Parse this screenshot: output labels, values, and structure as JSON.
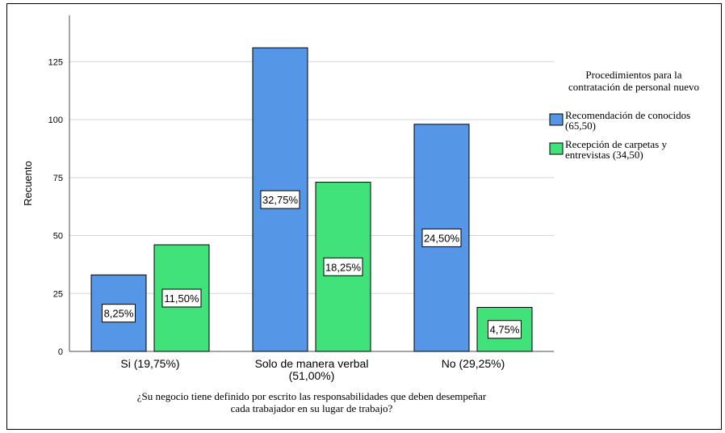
{
  "chart_data": {
    "type": "bar",
    "ylabel": "Recuento",
    "xlabel": "¿Su negocio tiene definido por escrito las responsabilidades que deben desempeñar cada trabajador en su lugar de trabajo?",
    "xlabel_lines": [
      "¿Su negocio tiene definido por escrito las responsabilidades que deben desempeñar",
      "cada trabajador en su lugar de trabajo?"
    ],
    "ylim": [
      0,
      145
    ],
    "yticks": [
      0,
      25,
      50,
      75,
      100,
      125
    ],
    "grid": true,
    "categories": [
      {
        "lines": [
          "Si (19,75%)"
        ]
      },
      {
        "lines": [
          "Solo de manera verbal",
          "(51,00%)"
        ]
      },
      {
        "lines": [
          "No (29,25%)"
        ]
      }
    ],
    "series": [
      {
        "name": "Recomendación de conocidos (65,50)",
        "legend_lines": [
          "Recomendación de conocidos",
          "(65,50)"
        ],
        "color": "#5596e6",
        "values": [
          33,
          131,
          98
        ],
        "labels": [
          "8,25%",
          "32,75%",
          "24,50%"
        ]
      },
      {
        "name": "Recepción de carpetas y entrevistas (34,50)",
        "legend_lines": [
          "Recepción de carpetas y",
          "entrevistas (34,50)"
        ],
        "color": "#41e27a",
        "values": [
          46,
          73,
          19
        ],
        "labels": [
          "11,50%",
          "18,25%",
          "4,75%"
        ]
      }
    ],
    "legend": {
      "title_lines": [
        "Procedimientos para la",
        "contratación de personal nuevo"
      ],
      "placement": "right"
    }
  }
}
